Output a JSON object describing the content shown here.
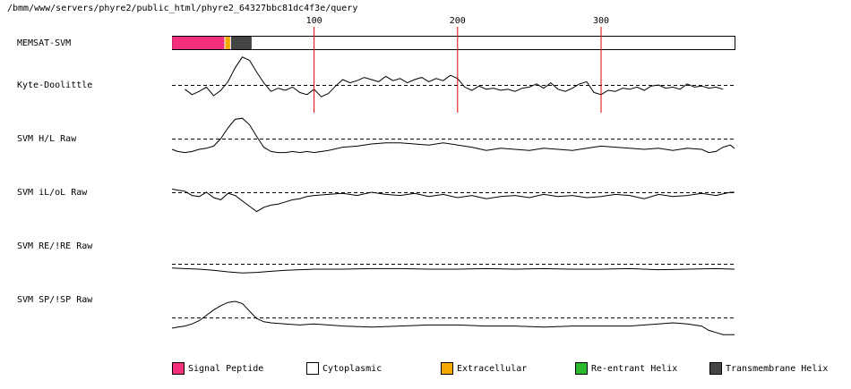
{
  "path_text": "/bmm/www/servers/phyre2/public_html/phyre2_64327bbc81dc4f3e/query",
  "chart_data": {
    "type": "line",
    "x_ticks": [
      100,
      200,
      300
    ],
    "xlim": [
      1,
      393
    ],
    "topology": {
      "label": "MEMSAT-SVM",
      "segments": [
        {
          "start": 1,
          "end": 37,
          "type": "Signal Peptide",
          "color": "#f4307a"
        },
        {
          "start": 38,
          "end": 41,
          "type": "Extracellular",
          "color": "#f5a800"
        },
        {
          "start": 42,
          "end": 56,
          "type": "Transmembrane Helix",
          "color": "#444444"
        },
        {
          "start": 57,
          "end": 393,
          "type": "Cytoplasmic",
          "color": "#ffffff"
        }
      ]
    },
    "tracks": [
      {
        "label": "Kyte-Doolittle",
        "x": [
          10,
          15,
          20,
          25,
          30,
          35,
          40,
          45,
          50,
          55,
          60,
          65,
          70,
          75,
          80,
          85,
          90,
          95,
          100,
          105,
          110,
          115,
          120,
          125,
          130,
          135,
          140,
          145,
          150,
          155,
          160,
          165,
          170,
          175,
          180,
          185,
          190,
          195,
          200,
          205,
          210,
          215,
          220,
          225,
          230,
          235,
          240,
          245,
          250,
          255,
          260,
          265,
          270,
          275,
          280,
          285,
          290,
          295,
          300,
          305,
          310,
          315,
          320,
          325,
          330,
          335,
          340,
          345,
          350,
          355,
          360,
          365,
          370,
          375,
          380,
          385
        ],
        "values": [
          -0.4,
          -0.9,
          -0.6,
          -0.2,
          -1.0,
          -0.5,
          0.3,
          1.6,
          2.6,
          2.3,
          1.2,
          0.2,
          -0.6,
          -0.3,
          -0.5,
          -0.2,
          -0.7,
          -0.9,
          -0.4,
          -1.1,
          -0.8,
          -0.1,
          0.5,
          0.2,
          0.4,
          0.7,
          0.5,
          0.3,
          0.8,
          0.4,
          0.6,
          0.2,
          0.5,
          0.7,
          0.3,
          0.6,
          0.4,
          0.9,
          0.6,
          -0.2,
          -0.5,
          -0.1,
          -0.4,
          -0.3,
          -0.5,
          -0.4,
          -0.6,
          -0.3,
          -0.2,
          0.1,
          -0.3,
          0.2,
          -0.4,
          -0.6,
          -0.3,
          0.1,
          0.3,
          -0.7,
          -0.9,
          -0.5,
          -0.6,
          -0.3,
          -0.4,
          -0.2,
          -0.5,
          -0.1,
          0.0,
          -0.3,
          -0.2,
          -0.4,
          0.1,
          -0.2,
          -0.1,
          -0.3,
          -0.2,
          -0.4
        ]
      },
      {
        "label": "SVM H/L Raw",
        "x": [
          1,
          5,
          10,
          15,
          20,
          25,
          30,
          35,
          40,
          45,
          50,
          55,
          60,
          65,
          70,
          75,
          80,
          85,
          90,
          95,
          100,
          110,
          120,
          130,
          140,
          150,
          160,
          170,
          180,
          190,
          200,
          210,
          220,
          230,
          240,
          250,
          260,
          270,
          280,
          290,
          300,
          310,
          320,
          330,
          340,
          350,
          360,
          370,
          375,
          380,
          385,
          390,
          393
        ],
        "values": [
          -1.0,
          -1.2,
          -1.3,
          -1.2,
          -1.0,
          -0.9,
          -0.7,
          0.0,
          1.0,
          1.8,
          1.9,
          1.3,
          0.2,
          -0.8,
          -1.2,
          -1.3,
          -1.3,
          -1.2,
          -1.3,
          -1.2,
          -1.3,
          -1.1,
          -0.8,
          -0.7,
          -0.5,
          -0.4,
          -0.4,
          -0.5,
          -0.6,
          -0.4,
          -0.6,
          -0.8,
          -1.1,
          -0.9,
          -1.0,
          -1.1,
          -0.9,
          -1.0,
          -1.1,
          -0.9,
          -0.7,
          -0.8,
          -0.9,
          -1.0,
          -0.9,
          -1.1,
          -0.9,
          -1.0,
          -1.3,
          -1.2,
          -0.8,
          -0.6,
          -0.9
        ]
      },
      {
        "label": "SVM iL/oL Raw",
        "x": [
          1,
          5,
          10,
          15,
          20,
          25,
          30,
          35,
          40,
          45,
          50,
          55,
          60,
          65,
          70,
          75,
          80,
          85,
          90,
          95,
          100,
          110,
          120,
          130,
          140,
          150,
          160,
          170,
          180,
          190,
          200,
          210,
          220,
          230,
          240,
          250,
          260,
          270,
          280,
          290,
          300,
          310,
          320,
          330,
          340,
          350,
          360,
          370,
          380,
          390,
          393
        ],
        "values": [
          0.3,
          0.2,
          0.1,
          -0.3,
          -0.4,
          0.0,
          -0.5,
          -0.7,
          -0.1,
          -0.3,
          -0.8,
          -1.3,
          -1.8,
          -1.4,
          -1.2,
          -1.1,
          -0.9,
          -0.7,
          -0.6,
          -0.4,
          -0.3,
          -0.2,
          -0.1,
          -0.3,
          0.0,
          -0.2,
          -0.3,
          -0.1,
          -0.4,
          -0.2,
          -0.5,
          -0.3,
          -0.6,
          -0.4,
          -0.3,
          -0.5,
          -0.2,
          -0.4,
          -0.3,
          -0.5,
          -0.4,
          -0.2,
          -0.3,
          -0.6,
          -0.2,
          -0.4,
          -0.3,
          -0.1,
          -0.3,
          0.0,
          0.0
        ]
      },
      {
        "label": "SVM RE/!RE Raw",
        "x": [
          1,
          10,
          20,
          30,
          40,
          50,
          60,
          70,
          80,
          90,
          100,
          120,
          140,
          160,
          180,
          200,
          220,
          240,
          260,
          280,
          300,
          320,
          340,
          360,
          380,
          393
        ],
        "values": [
          -0.8,
          -0.9,
          -1.0,
          -1.2,
          -1.5,
          -1.7,
          -1.6,
          -1.4,
          -1.2,
          -1.1,
          -1.0,
          -1.0,
          -0.9,
          -0.9,
          -1.0,
          -1.0,
          -0.9,
          -1.0,
          -0.9,
          -1.0,
          -1.0,
          -0.9,
          -1.1,
          -1.0,
          -0.9,
          -1.0
        ]
      },
      {
        "label": "SVM SP/!SP Raw",
        "x": [
          1,
          5,
          10,
          15,
          20,
          25,
          30,
          35,
          40,
          45,
          50,
          55,
          60,
          65,
          70,
          80,
          90,
          100,
          120,
          140,
          160,
          180,
          200,
          220,
          240,
          260,
          280,
          300,
          320,
          330,
          340,
          350,
          360,
          370,
          375,
          380,
          385,
          393
        ],
        "values": [
          -1.0,
          -0.9,
          -0.8,
          -0.6,
          -0.3,
          0.2,
          0.7,
          1.1,
          1.4,
          1.5,
          1.3,
          0.6,
          -0.1,
          -0.4,
          -0.5,
          -0.6,
          -0.7,
          -0.6,
          -0.8,
          -0.9,
          -0.8,
          -0.7,
          -0.7,
          -0.8,
          -0.8,
          -0.9,
          -0.8,
          -0.8,
          -0.8,
          -0.7,
          -0.6,
          -0.5,
          -0.6,
          -0.8,
          -1.2,
          -1.4,
          -1.6,
          -1.6
        ]
      }
    ],
    "legend": [
      {
        "label": "Signal Peptide",
        "color": "#f4307a"
      },
      {
        "label": "Cytoplasmic",
        "color": "#ffffff"
      },
      {
        "label": "Extracellular",
        "color": "#f5a800"
      },
      {
        "label": "Re-entrant Helix",
        "color": "#2db72d"
      },
      {
        "label": "Transmembrane Helix",
        "color": "#444444"
      }
    ]
  }
}
